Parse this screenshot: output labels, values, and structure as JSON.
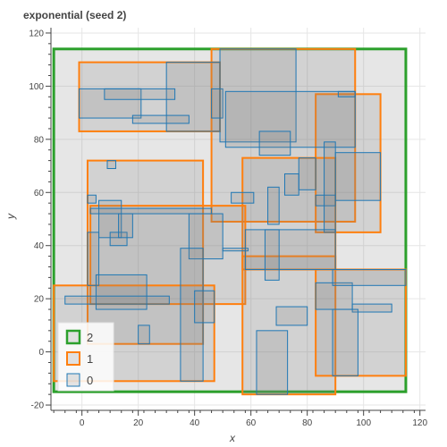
{
  "chart_data": {
    "type": "rect",
    "title": "exponential (seed 2)",
    "xlabel": "x",
    "ylabel": "y",
    "xlim": [
      -11,
      122
    ],
    "ylim": [
      -22,
      122
    ],
    "xticks": [
      0,
      20,
      40,
      60,
      80,
      100,
      120
    ],
    "yticks": [
      -20,
      0,
      20,
      40,
      60,
      80,
      100,
      120
    ],
    "grid": true,
    "legend_position": "bottom-left",
    "colors": {
      "2": "#2ca02c",
      "1": "#ff7f0e",
      "0": "#1f77b4",
      "fill": "#808080",
      "grid": "#e6e6e6",
      "axis": "#444444"
    },
    "legend": [
      "2",
      "1",
      "0"
    ],
    "series": [
      {
        "name": "2",
        "rects": [
          {
            "x0": -10,
            "y0": -15,
            "x1": 115,
            "y1": 114
          }
        ]
      },
      {
        "name": "1",
        "rects": [
          {
            "x0": -1,
            "y0": 83,
            "x1": 49,
            "y1": 109
          },
          {
            "x0": 46,
            "y0": 49,
            "x1": 97,
            "y1": 114
          },
          {
            "x0": 83,
            "y0": 45,
            "x1": 106,
            "y1": 97
          },
          {
            "x0": 57,
            "y0": 31,
            "x1": 90,
            "y1": 73
          },
          {
            "x0": 2,
            "y0": 3,
            "x1": 43,
            "y1": 72
          },
          {
            "x0": 3,
            "y0": 18,
            "x1": 58,
            "y1": 55
          },
          {
            "x0": -10,
            "y0": -11,
            "x1": 47,
            "y1": 25
          },
          {
            "x0": 57,
            "y0": -16,
            "x1": 90,
            "y1": 36
          },
          {
            "x0": 83,
            "y0": -9,
            "x1": 115,
            "y1": 31
          }
        ]
      },
      {
        "name": "0",
        "rects": [
          {
            "x0": 30,
            "y0": 83,
            "x1": 49,
            "y1": 109
          },
          {
            "x0": -1,
            "y0": 88,
            "x1": 21,
            "y1": 99
          },
          {
            "x0": 8,
            "y0": 95,
            "x1": 33,
            "y1": 99
          },
          {
            "x0": 18,
            "y0": 86,
            "x1": 38,
            "y1": 89
          },
          {
            "x0": 46,
            "y0": 88,
            "x1": 50,
            "y1": 99
          },
          {
            "x0": 49,
            "y0": 79,
            "x1": 76,
            "y1": 114
          },
          {
            "x0": 51,
            "y0": 77,
            "x1": 97,
            "y1": 98
          },
          {
            "x0": 91,
            "y0": 96,
            "x1": 97,
            "y1": 98
          },
          {
            "x0": 63,
            "y0": 74,
            "x1": 74,
            "y1": 83
          },
          {
            "x0": 77,
            "y0": 61,
            "x1": 83,
            "y1": 73
          },
          {
            "x0": 83,
            "y0": 55,
            "x1": 90,
            "y1": 59
          },
          {
            "x0": 86,
            "y0": 45,
            "x1": 90,
            "y1": 79
          },
          {
            "x0": 90,
            "y0": 57,
            "x1": 106,
            "y1": 75
          },
          {
            "x0": 53,
            "y0": 56,
            "x1": 61,
            "y1": 60
          },
          {
            "x0": 66,
            "y0": 48,
            "x1": 70,
            "y1": 62
          },
          {
            "x0": 72,
            "y0": 59,
            "x1": 77,
            "y1": 67
          },
          {
            "x0": 9,
            "y0": 69,
            "x1": 12,
            "y1": 72
          },
          {
            "x0": 2,
            "y0": 56,
            "x1": 5,
            "y1": 59
          },
          {
            "x0": 6,
            "y0": 43,
            "x1": 14,
            "y1": 57
          },
          {
            "x0": 10,
            "y0": 40,
            "x1": 16,
            "y1": 45
          },
          {
            "x0": 13,
            "y0": 43,
            "x1": 18,
            "y1": 52
          },
          {
            "x0": 3,
            "y0": 52,
            "x1": 46,
            "y1": 54
          },
          {
            "x0": 38,
            "y0": 35,
            "x1": 50,
            "y1": 52
          },
          {
            "x0": 2,
            "y0": 25,
            "x1": 6,
            "y1": 45
          },
          {
            "x0": 5,
            "y0": 16,
            "x1": 23,
            "y1": 29
          },
          {
            "x0": -6,
            "y0": 18,
            "x1": 31,
            "y1": 21
          },
          {
            "x0": 35,
            "y0": -11,
            "x1": 43,
            "y1": 39
          },
          {
            "x0": 40,
            "y0": 11,
            "x1": 47,
            "y1": 23
          },
          {
            "x0": 20,
            "y0": 3,
            "x1": 24,
            "y1": 10
          },
          {
            "x0": 50,
            "y0": 38,
            "x1": 59,
            "y1": 39
          },
          {
            "x0": 58,
            "y0": 31,
            "x1": 90,
            "y1": 46
          },
          {
            "x0": 65,
            "y0": 27,
            "x1": 70,
            "y1": 46
          },
          {
            "x0": 69,
            "y0": 10,
            "x1": 80,
            "y1": 17
          },
          {
            "x0": 62,
            "y0": -16,
            "x1": 73,
            "y1": 8
          },
          {
            "x0": 83,
            "y0": 16,
            "x1": 96,
            "y1": 26
          },
          {
            "x0": 89,
            "y0": 25,
            "x1": 115,
            "y1": 31
          },
          {
            "x0": 96,
            "y0": 15,
            "x1": 110,
            "y1": 18
          },
          {
            "x0": 89,
            "y0": -9,
            "x1": 98,
            "y1": 16
          }
        ]
      }
    ]
  }
}
